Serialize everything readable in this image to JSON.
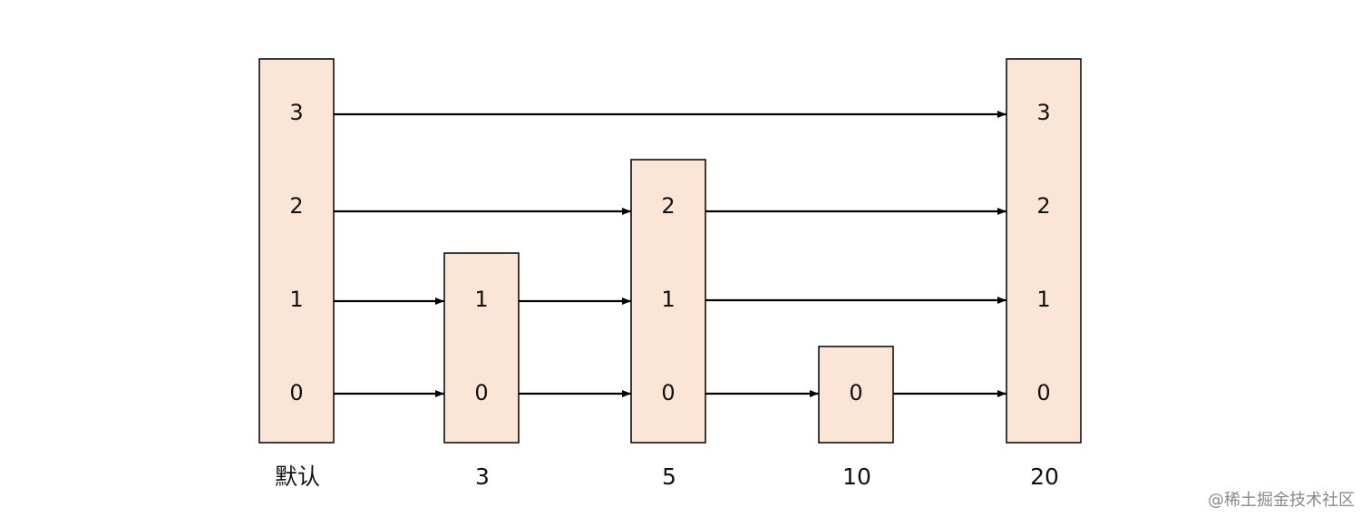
{
  "columns": [
    {
      "label": "默认",
      "cells": [
        3,
        2,
        1,
        0
      ]
    },
    {
      "label": 3,
      "cells": [
        1,
        0
      ]
    },
    {
      "label": 5,
      "cells": [
        2,
        1,
        0
      ]
    },
    {
      "label": 10,
      "cells": [
        0
      ]
    },
    {
      "label": 20,
      "cells": [
        3,
        2,
        1,
        0
      ]
    }
  ],
  "watermark": "@稀土掘金技术社区"
}
